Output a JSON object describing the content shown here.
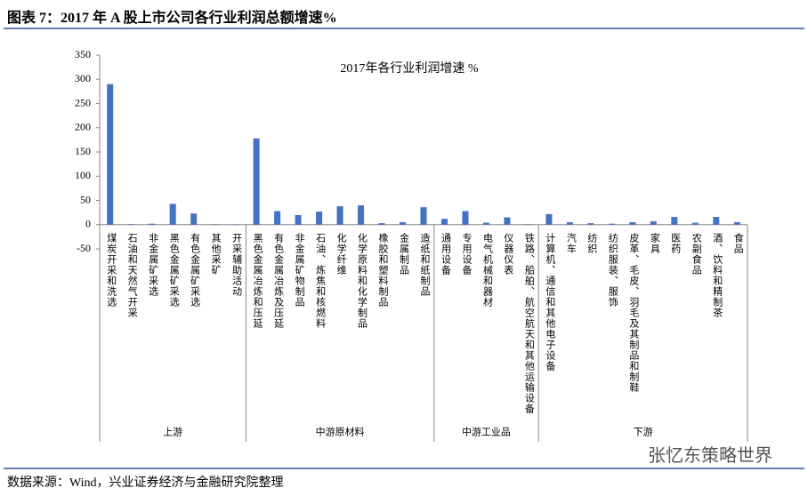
{
  "header": {
    "title": "图表 7：2017 年 A 股上市公司各行业利润总额增速%"
  },
  "chart_data": {
    "type": "bar",
    "title": "2017年各行业利润增速 %",
    "color": "#4472c4",
    "ylim": [
      -50,
      350
    ],
    "yticks": [
      -50,
      0,
      50,
      100,
      150,
      200,
      250,
      300,
      350
    ],
    "groups": [
      {
        "name": "上游",
        "categories": [
          "煤炭开采和洗选",
          "石油和天然气开采",
          "非金属矿采选",
          "黑色金属矿采选",
          "有色金属矿采选",
          "其他采矿",
          "开采辅助活动"
        ],
        "values": [
          290,
          1,
          2,
          43,
          23,
          0,
          0
        ]
      },
      {
        "name": "中游原材料",
        "categories": [
          "黑色金属冶炼和压延",
          "有色金属冶炼及压延",
          "非金属矿物制品",
          "石油、炼焦和核燃料",
          "化学纤维",
          "化学原料和化学制品",
          "橡胶和塑料制品",
          "金属制品",
          "造纸和纸制品"
        ],
        "values": [
          178,
          28,
          20,
          27,
          38,
          40,
          3,
          5,
          36
        ]
      },
      {
        "name": "中游工业品",
        "categories": [
          "通用设备",
          "专用设备",
          "电气机械和器材",
          "仪器仪表",
          "铁路、船舶、航空航天和其他运输设备"
        ],
        "values": [
          12,
          28,
          4,
          15,
          -1
        ]
      },
      {
        "name": "下游",
        "categories": [
          "计算机、通信和其他电子设备",
          "汽车",
          "纺织",
          "纺织服装、服饰",
          "皮革、毛皮、羽毛及其制品和制鞋",
          "家具",
          "医药",
          "农副食品",
          "酒、饮料和精制茶",
          "食品"
        ],
        "values": [
          22,
          5,
          3,
          2,
          5,
          7,
          16,
          4,
          16,
          5
        ]
      }
    ]
  },
  "footer": {
    "source": "数据来源：Wind，兴业证券经济与金融研究院整理",
    "watermark": "张忆东策略世界"
  }
}
